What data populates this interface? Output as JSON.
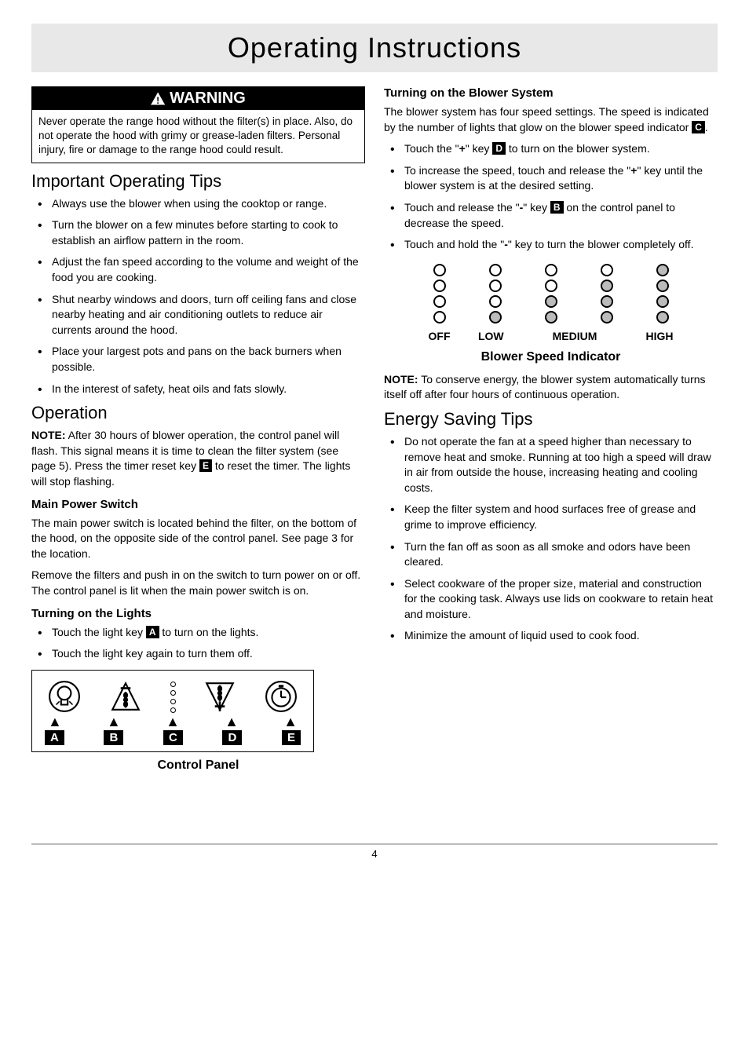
{
  "page_title": "Operating Instructions",
  "page_number": "4",
  "warning": {
    "label": "WARNING",
    "body": "Never operate the range hood without the filter(s) in place. Also, do not operate the hood with grimy or grease-laden filters. Personal injury, fire or damage to the range hood could result."
  },
  "sections": {
    "tips_heading": "Important Operating Tips",
    "tips": [
      "Always use the blower when using the cooktop or range.",
      "Turn the blower on a few minutes before starting to cook to establish an airflow pattern in the room.",
      "Adjust the fan speed according to the volume and weight of the food you are cooking.",
      "Shut nearby windows and doors, turn off ceiling fans and close nearby heating and air conditioning outlets to reduce air currents around the hood.",
      "Place your largest pots and pans on the back burners when possible.",
      "In the interest of safety, heat oils and fats slowly."
    ],
    "operation_heading": "Operation",
    "operation_note_label": "NOTE:",
    "operation_note_before": " After 30 hours of blower operation, the control panel will flash. This signal means it is time to clean the filter system (see page 5). Press the timer reset key ",
    "operation_note_key": "E",
    "operation_note_after": " to reset the timer. The lights will stop flashing.",
    "main_power_heading": "Main Power Switch",
    "main_power_p1": "The main power switch is located behind the filter, on the bottom of the hood, on the opposite side of the control panel. See page 3 for the location.",
    "main_power_p2": "Remove the filters and push in on the switch to turn power on or off. The control panel is lit when the main power switch is on.",
    "lights_heading": "Turning on the Lights",
    "lights_item1_before": "Touch the light key ",
    "lights_item1_key": "A",
    "lights_item1_after": " to turn on the lights.",
    "lights_item2": "Touch the light key again to turn them off.",
    "panel_labels": [
      "A",
      "B",
      "C",
      "D",
      "E"
    ],
    "panel_caption": "Control Panel",
    "blower_heading": "Turning on the Blower System",
    "blower_intro_before": "The blower system has four speed settings. The speed is indicated by the number of lights that glow on the blower speed indicator ",
    "blower_intro_key": "C",
    "blower_intro_after": ".",
    "blower_item1_before": "Touch the \"",
    "blower_item1_sym": "+",
    "blower_item1_mid": "\" key ",
    "blower_item1_key": "D",
    "blower_item1_after": " to turn on the blower system.",
    "blower_item2": "To increase the speed, touch and release the \"+\" key until the blower system is at the desired setting.",
    "blower_item3_before": "Touch and release the \"",
    "blower_item3_sym": "-",
    "blower_item3_mid": "\" key ",
    "blower_item3_key": "B",
    "blower_item3_after": " on the control panel to decrease the speed.",
    "blower_item4": "Touch and hold the \"-\" key to turn the blower completely off.",
    "speed_labels": [
      "OFF",
      "LOW",
      "MEDIUM",
      "HIGH"
    ],
    "speed_grid": {
      "rows": 4,
      "cols": 5,
      "filled": [
        [
          0,
          0,
          0,
          0,
          1
        ],
        [
          0,
          0,
          0,
          1,
          1
        ],
        [
          0,
          0,
          1,
          1,
          1
        ],
        [
          0,
          1,
          1,
          1,
          1
        ]
      ]
    },
    "speed_caption": "Blower Speed Indicator",
    "conserve_label": "NOTE:",
    "conserve_text": " To conserve energy, the blower system automatically turns itself off after four hours of continuous operation.",
    "energy_heading": "Energy Saving Tips",
    "energy_tips": [
      "Do not operate the fan at a speed higher than necessary to remove heat and smoke. Running at too high a speed will draw in air from outside the house, increasing heating and cooling costs.",
      "Keep the filter system and hood surfaces free of grease and grime to improve efficiency.",
      "Turn the fan off as soon as all smoke and odors have been cleared.",
      "Select cookware of the proper size, material and construction for the cooking task. Always use lids on cookware to retain heat and moisture.",
      "Minimize the amount of liquid used to cook food."
    ]
  },
  "styling": {
    "title_bg": "#e8e8e8",
    "warning_bg": "#000000",
    "warning_fg": "#ffffff",
    "footer_rule_color": "#bbbbbb"
  }
}
